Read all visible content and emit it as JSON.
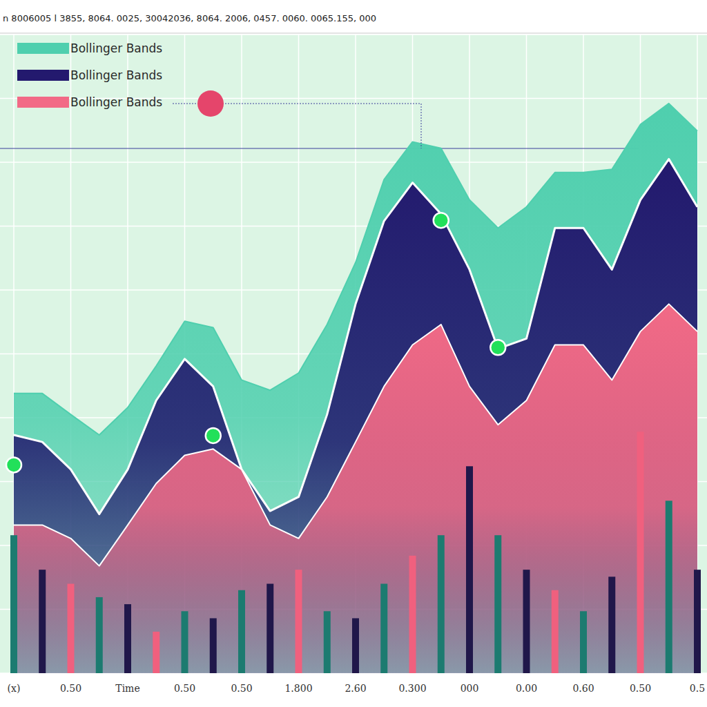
{
  "chart_data": {
    "type": "line",
    "title": "n 8006005 l 3855, 8064. 0025, 30042036, 8064. 2006, 0457. 0060. 0065.155, 000",
    "categories": [
      "(x)",
      null,
      "0.50",
      null,
      "Time",
      null,
      "0.50",
      null,
      "0.50",
      null,
      "1.800",
      null,
      "2.60",
      null,
      "0.300",
      null,
      "000",
      null,
      "0.00",
      null,
      "0.60",
      null,
      "0.50",
      null,
      "0.5"
    ],
    "series": [
      {
        "name": "Bollinger Bands",
        "type": "area",
        "color": "#4fcfae",
        "values": [
          43.8,
          43.8,
          40.5,
          37.3,
          41.6,
          48.1,
          55.1,
          54.1,
          45.9,
          44.3,
          47.0,
          54.6,
          64.3,
          77.3,
          83.2,
          82.2,
          74.1,
          69.7,
          73.0,
          78.4,
          78.4,
          78.9,
          85.9,
          89.2,
          84.9
        ]
      },
      {
        "name": "Bollinger Bands",
        "type": "area",
        "color": "#23196e",
        "values": [
          37.3,
          36.2,
          31.9,
          24.9,
          31.9,
          42.7,
          49.2,
          44.9,
          31.9,
          25.4,
          27.6,
          40.5,
          57.8,
          70.8,
          76.8,
          71.9,
          63.2,
          50.8,
          52.4,
          69.7,
          69.7,
          63.2,
          74.1,
          80.5,
          73.0
        ]
      },
      {
        "name": "Bollinger Bands",
        "type": "area",
        "color": "#f26a86",
        "values": [
          23.2,
          23.2,
          21.1,
          16.8,
          23.2,
          29.7,
          34.1,
          35.1,
          31.9,
          23.2,
          21.1,
          27.6,
          36.2,
          44.9,
          51.4,
          54.6,
          44.9,
          38.9,
          42.7,
          51.4,
          51.4,
          45.9,
          53.5,
          57.8,
          53.5
        ]
      },
      {
        "type": "scatter",
        "color": "#22e05a",
        "marker": "circle",
        "values": [
          32.6,
          null,
          null,
          null,
          null,
          null,
          null,
          37.2,
          null,
          null,
          null,
          null,
          null,
          null,
          null,
          70.9,
          null,
          51.0,
          null,
          null,
          null,
          null,
          null,
          null,
          null
        ]
      },
      {
        "type": "bar",
        "colors": [
          "#1c7b70",
          "#20174a",
          "#f0607e",
          "#1c7b70",
          "#20174a",
          "#f0607e",
          "#1c7b70",
          "#20174a",
          "#1c7b70",
          "#20174a",
          "#f0607e",
          "#1c7b70",
          "#20174a",
          "#1c7b70",
          "#f0607e",
          "#1c7b70",
          "#20174a",
          "#1c7b70",
          "#20174a",
          "#f0607e",
          "#1c7b70",
          "#20174a",
          "#f0607e",
          "#1c7b70",
          "#20174a"
        ],
        "values": [
          21.6,
          16.2,
          14.0,
          11.9,
          10.8,
          6.5,
          9.7,
          8.6,
          13.0,
          14.0,
          16.2,
          9.7,
          8.6,
          14.0,
          18.4,
          21.6,
          32.4,
          21.6,
          16.2,
          13.0,
          9.7,
          15.1,
          37.8,
          27.0,
          16.2
        ]
      }
    ],
    "ylim": [
      0,
      100
    ],
    "yticks": [
      0,
      10,
      20,
      30,
      40,
      50,
      60,
      70,
      80,
      90,
      100
    ],
    "grid": true,
    "legend": "top-left",
    "tick_labels": "x"
  }
}
